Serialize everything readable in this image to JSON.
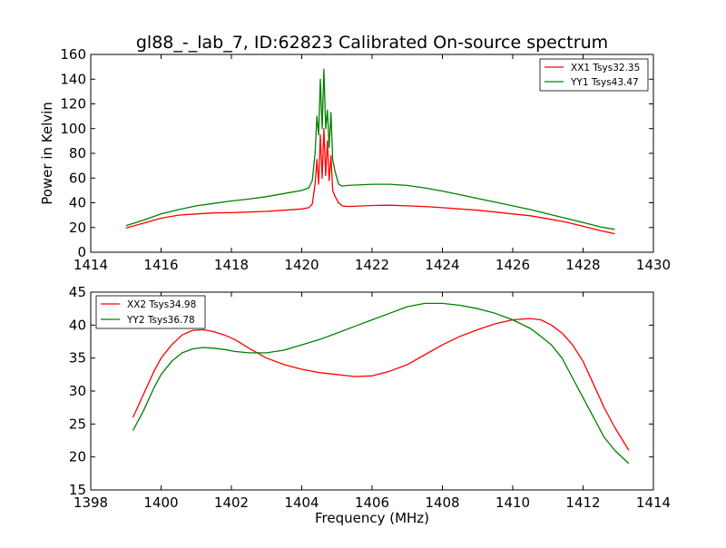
{
  "chart_data": [
    {
      "type": "line",
      "title": "gl88_-_lab_7, ID:62823 Calibrated On-source spectrum",
      "xlabel": "",
      "ylabel": "Power in Kelvin",
      "xlim": [
        1414,
        1430
      ],
      "ylim": [
        0,
        160
      ],
      "xticks": [
        1414,
        1416,
        1418,
        1420,
        1422,
        1424,
        1426,
        1428,
        1430
      ],
      "yticks": [
        0,
        20,
        40,
        60,
        80,
        100,
        120,
        140,
        160
      ],
      "grid": false,
      "legend_position": "top-right",
      "series": [
        {
          "name": "XX1 Tsys32.35",
          "color": "#ff0000",
          "x": [
            1415.0,
            1415.5,
            1416.0,
            1416.5,
            1417.0,
            1417.5,
            1418.0,
            1418.5,
            1419.0,
            1419.5,
            1420.0,
            1420.2,
            1420.3,
            1420.38,
            1420.43,
            1420.48,
            1420.53,
            1420.58,
            1420.63,
            1420.68,
            1420.73,
            1420.78,
            1420.83,
            1420.88,
            1420.95,
            1421.05,
            1421.15,
            1421.3,
            1422.0,
            1422.5,
            1423.0,
            1423.5,
            1424.0,
            1424.5,
            1425.0,
            1425.5,
            1426.0,
            1426.5,
            1427.0,
            1427.5,
            1428.0,
            1428.5,
            1428.9
          ],
          "values": [
            19.5,
            23.5,
            27.5,
            30.0,
            31.0,
            31.8,
            32.0,
            32.5,
            33.0,
            34.0,
            35.0,
            36.0,
            39.0,
            55.0,
            75.0,
            55.0,
            95.0,
            60.0,
            100.0,
            62.0,
            90.0,
            58.0,
            78.0,
            50.0,
            45.0,
            40.0,
            37.5,
            37.0,
            37.8,
            38.0,
            37.5,
            37.0,
            36.0,
            35.0,
            34.0,
            32.5,
            31.0,
            29.5,
            27.0,
            24.5,
            21.0,
            17.5,
            15.0
          ]
        },
        {
          "name": "YY1 Tsys43.47",
          "color": "#008000",
          "x": [
            1415.0,
            1415.5,
            1416.0,
            1416.5,
            1417.0,
            1417.5,
            1418.0,
            1418.5,
            1419.0,
            1419.5,
            1420.0,
            1420.2,
            1420.3,
            1420.38,
            1420.43,
            1420.48,
            1420.53,
            1420.58,
            1420.63,
            1420.68,
            1420.73,
            1420.78,
            1420.83,
            1420.88,
            1420.95,
            1421.05,
            1421.15,
            1421.3,
            1422.0,
            1422.5,
            1423.0,
            1423.5,
            1424.0,
            1424.5,
            1425.0,
            1425.5,
            1426.0,
            1426.5,
            1427.0,
            1427.5,
            1428.0,
            1428.5,
            1428.9
          ],
          "values": [
            21.5,
            26.0,
            31.0,
            34.5,
            37.5,
            39.5,
            41.5,
            43.0,
            45.0,
            47.5,
            50.0,
            52.0,
            58.0,
            80.0,
            110.0,
            95.0,
            140.0,
            100.0,
            148.0,
            100.0,
            115.0,
            85.0,
            113.0,
            75.0,
            65.0,
            55.0,
            53.5,
            54.0,
            55.0,
            55.0,
            54.0,
            52.0,
            49.5,
            46.5,
            43.5,
            40.5,
            37.5,
            34.5,
            31.0,
            27.5,
            24.0,
            20.5,
            18.5
          ]
        }
      ]
    },
    {
      "type": "line",
      "title": "",
      "xlabel": "Frequency (MHz)",
      "ylabel": "",
      "xlim": [
        1398,
        1414
      ],
      "ylim": [
        15,
        45
      ],
      "xticks": [
        1398,
        1400,
        1402,
        1404,
        1406,
        1408,
        1410,
        1412,
        1414
      ],
      "yticks": [
        15,
        20,
        25,
        30,
        35,
        40,
        45
      ],
      "grid": false,
      "legend_position": "top-left",
      "series": [
        {
          "name": "XX2 Tsys34.98",
          "color": "#ff0000",
          "x": [
            1399.2,
            1399.5,
            1399.8,
            1400.0,
            1400.3,
            1400.6,
            1400.9,
            1401.2,
            1401.5,
            1401.8,
            1402.1,
            1402.5,
            1403.0,
            1403.5,
            1404.0,
            1404.5,
            1405.0,
            1405.5,
            1406.0,
            1406.5,
            1407.0,
            1407.5,
            1408.0,
            1408.5,
            1409.0,
            1409.5,
            1410.0,
            1410.5,
            1410.8,
            1411.1,
            1411.4,
            1411.7,
            1412.0,
            1412.3,
            1412.6,
            1412.9,
            1413.3
          ],
          "values": [
            26.0,
            29.5,
            33.0,
            35.0,
            37.0,
            38.5,
            39.2,
            39.3,
            39.0,
            38.5,
            37.8,
            36.5,
            35.0,
            34.0,
            33.3,
            32.8,
            32.5,
            32.2,
            32.3,
            33.0,
            34.0,
            35.5,
            37.0,
            38.3,
            39.3,
            40.2,
            40.8,
            41.0,
            40.8,
            40.0,
            38.8,
            37.0,
            34.5,
            31.0,
            27.5,
            24.5,
            21.0
          ]
        },
        {
          "name": "YY2 Tsys36.78",
          "color": "#008000",
          "x": [
            1399.2,
            1399.5,
            1399.8,
            1400.0,
            1400.3,
            1400.6,
            1400.9,
            1401.2,
            1401.5,
            1401.8,
            1402.1,
            1402.5,
            1403.0,
            1403.5,
            1404.0,
            1404.5,
            1405.0,
            1405.5,
            1406.0,
            1406.5,
            1407.0,
            1407.5,
            1408.0,
            1408.5,
            1409.0,
            1409.5,
            1410.0,
            1410.5,
            1410.8,
            1411.1,
            1411.4,
            1411.7,
            1412.0,
            1412.3,
            1412.6,
            1412.9,
            1413.3
          ],
          "values": [
            24.0,
            27.0,
            30.5,
            32.5,
            34.5,
            35.8,
            36.4,
            36.6,
            36.5,
            36.3,
            36.0,
            35.8,
            35.8,
            36.2,
            37.0,
            37.8,
            38.8,
            39.8,
            40.8,
            41.8,
            42.8,
            43.3,
            43.3,
            43.0,
            42.5,
            41.8,
            40.8,
            39.5,
            38.3,
            37.0,
            35.0,
            32.0,
            29.0,
            26.0,
            23.0,
            21.0,
            19.0
          ]
        }
      ]
    }
  ]
}
